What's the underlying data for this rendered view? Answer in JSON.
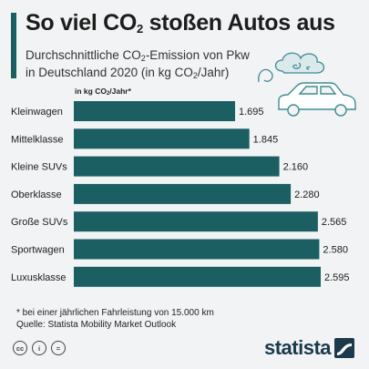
{
  "header": {
    "title_pre": "So viel CO",
    "title_sub": "2",
    "title_post": " stoßen Autos aus",
    "subtitle_line1": "Durchschnittliche CO",
    "subtitle_line1_sub": "2",
    "subtitle_line1_post": "-Emission von Pkw",
    "subtitle_line2": "in Deutschland 2020 (in kg CO",
    "subtitle_line2_sub": "2",
    "subtitle_line2_post": "/Jahr)"
  },
  "unit_label": {
    "pre": "in kg CO",
    "sub": "2",
    "post": "/Jahr*"
  },
  "chart_data": {
    "type": "bar",
    "orientation": "horizontal",
    "categories": [
      "Kleinwagen",
      "Mittelklasse",
      "Kleine SUVs",
      "Oberklasse",
      "Große SUVs",
      "Sportwagen",
      "Luxusklasse"
    ],
    "values": [
      1695,
      1845,
      2160,
      2280,
      2565,
      2580,
      2595
    ],
    "value_labels": [
      "1.695",
      "1.845",
      "2.160",
      "2.280",
      "2.565",
      "2.580",
      "2.595"
    ],
    "xlim": [
      0,
      2650
    ],
    "bar_color": "#1b5f63",
    "grid": false,
    "legend": "none"
  },
  "footnote": {
    "line1": "* bei einer jährlichen Fahrleistung von 15.000 km",
    "line2": "Quelle: Statista Mobility Market Outlook"
  },
  "footer": {
    "license_icons": [
      "cc-icon",
      "info-icon",
      "equals-icon"
    ],
    "license_glyphs": [
      "cc",
      "i",
      "="
    ],
    "brand": "statista"
  },
  "colors": {
    "accent": "#1b5f63",
    "background": "#f1f3f4",
    "brand": "#1b3a4b"
  }
}
